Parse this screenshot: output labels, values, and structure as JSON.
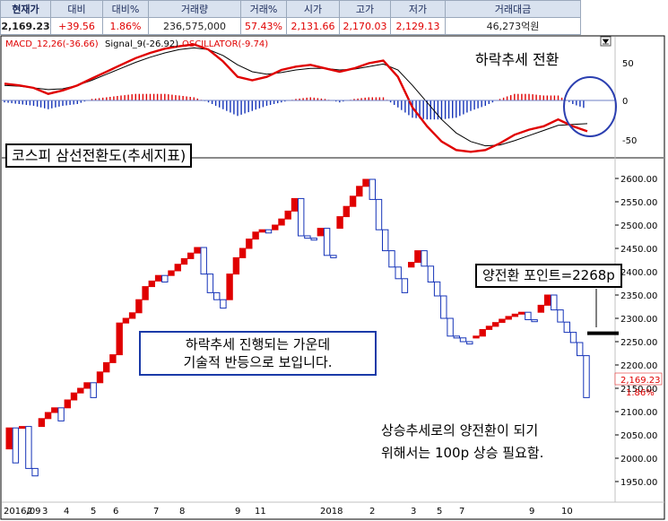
{
  "quote_header": {
    "labels": [
      "현재가",
      "대비",
      "대비%",
      "거래량",
      "거래%",
      "시가",
      "고가",
      "저가",
      "거래대금"
    ],
    "values": [
      "2,169.23",
      "+39.56",
      "1.86%",
      "236,575,000",
      "57.43%",
      "2,131.66",
      "2,170.03",
      "2,129.13",
      "46,273억원"
    ]
  },
  "colors": {
    "up": "#e00000",
    "down": "#1433b8",
    "signal": "#000000",
    "accent_circle": "#2b3fb0"
  },
  "icons": {
    "collapse": "collapse-toggle-icon"
  },
  "macd_panel": {
    "legend": {
      "macd": "MACD_12,26(-36.66)",
      "signal": "Signal_9(-26.92)",
      "oscillator": "OSCILLATOR(-9.74)"
    },
    "y_ticks": [
      "50",
      "0",
      "-50"
    ],
    "annotation": "하락추세 전환"
  },
  "price_panel": {
    "title": "코스피 삼선전환도(추세지표)",
    "y_ticks": [
      "2600.00",
      "2550.00",
      "2500.00",
      "2450.00",
      "2400.00",
      "2350.00",
      "2300.00",
      "2250.00",
      "2200.00",
      "2150.00",
      "2100.00",
      "2050.00",
      "2000.00",
      "1950.00"
    ],
    "current_price": "2,169.23",
    "current_change": "1.86%",
    "x_labels": [
      "2016/09",
      "2",
      "3",
      "4",
      "5",
      "6",
      "7",
      "8",
      "9",
      "11",
      "2018",
      "2",
      "3",
      "5",
      "7",
      "9",
      "10"
    ],
    "annotation_reversal": "양전환 포인트=2268p",
    "annotation_middle_line1": "하락추세 진행되는 가운데",
    "annotation_middle_line2": "기술적 반등으로 보입니다.",
    "annotation_bottom_line1": "상승추세로의 양전환이 되기",
    "annotation_bottom_line2": "위해서는 100p 상승 필요함."
  },
  "chart_data": {
    "type": "three-line-break",
    "reversal_level": 2268,
    "ylim": [
      1930,
      2620
    ],
    "bricks": [
      {
        "dir": "up",
        "open": 2020,
        "close": 2065
      },
      {
        "dir": "down",
        "open": 2065,
        "close": 1990
      },
      {
        "dir": "up",
        "open": 2065,
        "close": 2068
      },
      {
        "dir": "down",
        "open": 2068,
        "close": 1978
      },
      {
        "dir": "down",
        "open": 1978,
        "close": 1962
      },
      {
        "dir": "up",
        "open": 2068,
        "close": 2085
      },
      {
        "dir": "up",
        "open": 2085,
        "close": 2098
      },
      {
        "dir": "up",
        "open": 2098,
        "close": 2108
      },
      {
        "dir": "down",
        "open": 2108,
        "close": 2080
      },
      {
        "dir": "up",
        "open": 2108,
        "close": 2125
      },
      {
        "dir": "up",
        "open": 2125,
        "close": 2140
      },
      {
        "dir": "up",
        "open": 2140,
        "close": 2150
      },
      {
        "dir": "up",
        "open": 2150,
        "close": 2162
      },
      {
        "dir": "down",
        "open": 2162,
        "close": 2130
      },
      {
        "dir": "up",
        "open": 2162,
        "close": 2185
      },
      {
        "dir": "up",
        "open": 2185,
        "close": 2205
      },
      {
        "dir": "up",
        "open": 2205,
        "close": 2222
      },
      {
        "dir": "up",
        "open": 2222,
        "close": 2290
      },
      {
        "dir": "up",
        "open": 2290,
        "close": 2300
      },
      {
        "dir": "up",
        "open": 2300,
        "close": 2312
      },
      {
        "dir": "up",
        "open": 2312,
        "close": 2340
      },
      {
        "dir": "up",
        "open": 2340,
        "close": 2368
      },
      {
        "dir": "up",
        "open": 2368,
        "close": 2380
      },
      {
        "dir": "up",
        "open": 2380,
        "close": 2392
      },
      {
        "dir": "down",
        "open": 2392,
        "close": 2378
      },
      {
        "dir": "up",
        "open": 2392,
        "close": 2402
      },
      {
        "dir": "up",
        "open": 2402,
        "close": 2416
      },
      {
        "dir": "up",
        "open": 2416,
        "close": 2428
      },
      {
        "dir": "up",
        "open": 2428,
        "close": 2440
      },
      {
        "dir": "up",
        "open": 2440,
        "close": 2452
      },
      {
        "dir": "down",
        "open": 2452,
        "close": 2395
      },
      {
        "dir": "down",
        "open": 2395,
        "close": 2355
      },
      {
        "dir": "down",
        "open": 2355,
        "close": 2340
      },
      {
        "dir": "down",
        "open": 2340,
        "close": 2322
      },
      {
        "dir": "up",
        "open": 2340,
        "close": 2395
      },
      {
        "dir": "up",
        "open": 2395,
        "close": 2430
      },
      {
        "dir": "up",
        "open": 2430,
        "close": 2450
      },
      {
        "dir": "up",
        "open": 2450,
        "close": 2470
      },
      {
        "dir": "up",
        "open": 2470,
        "close": 2485
      },
      {
        "dir": "up",
        "open": 2485,
        "close": 2490
      },
      {
        "dir": "down",
        "open": 2490,
        "close": 2483
      },
      {
        "dir": "up",
        "open": 2490,
        "close": 2500
      },
      {
        "dir": "up",
        "open": 2500,
        "close": 2513
      },
      {
        "dir": "up",
        "open": 2513,
        "close": 2530
      },
      {
        "dir": "up",
        "open": 2530,
        "close": 2557
      },
      {
        "dir": "down",
        "open": 2557,
        "close": 2477
      },
      {
        "dir": "down",
        "open": 2477,
        "close": 2472
      },
      {
        "dir": "down",
        "open": 2472,
        "close": 2468
      },
      {
        "dir": "up",
        "open": 2477,
        "close": 2493
      },
      {
        "dir": "down",
        "open": 2493,
        "close": 2435
      },
      {
        "dir": "down",
        "open": 2435,
        "close": 2430
      },
      {
        "dir": "up",
        "open": 2493,
        "close": 2518
      },
      {
        "dir": "up",
        "open": 2518,
        "close": 2540
      },
      {
        "dir": "up",
        "open": 2540,
        "close": 2562
      },
      {
        "dir": "up",
        "open": 2562,
        "close": 2583
      },
      {
        "dir": "up",
        "open": 2583,
        "close": 2598
      },
      {
        "dir": "down",
        "open": 2598,
        "close": 2555
      },
      {
        "dir": "down",
        "open": 2555,
        "close": 2490
      },
      {
        "dir": "down",
        "open": 2490,
        "close": 2445
      },
      {
        "dir": "down",
        "open": 2445,
        "close": 2410
      },
      {
        "dir": "down",
        "open": 2410,
        "close": 2385
      },
      {
        "dir": "down",
        "open": 2385,
        "close": 2355
      },
      {
        "dir": "up",
        "open": 2410,
        "close": 2420
      },
      {
        "dir": "up",
        "open": 2420,
        "close": 2445
      },
      {
        "dir": "down",
        "open": 2445,
        "close": 2412
      },
      {
        "dir": "down",
        "open": 2412,
        "close": 2378
      },
      {
        "dir": "down",
        "open": 2378,
        "close": 2348
      },
      {
        "dir": "down",
        "open": 2348,
        "close": 2300
      },
      {
        "dir": "down",
        "open": 2300,
        "close": 2262
      },
      {
        "dir": "down",
        "open": 2262,
        "close": 2258
      },
      {
        "dir": "down",
        "open": 2258,
        "close": 2250
      },
      {
        "dir": "down",
        "open": 2250,
        "close": 2245
      },
      {
        "dir": "up",
        "open": 2258,
        "close": 2262
      },
      {
        "dir": "up",
        "open": 2262,
        "close": 2276
      },
      {
        "dir": "up",
        "open": 2276,
        "close": 2283
      },
      {
        "dir": "up",
        "open": 2283,
        "close": 2291
      },
      {
        "dir": "up",
        "open": 2291,
        "close": 2298
      },
      {
        "dir": "up",
        "open": 2298,
        "close": 2304
      },
      {
        "dir": "up",
        "open": 2304,
        "close": 2309
      },
      {
        "dir": "up",
        "open": 2309,
        "close": 2313
      },
      {
        "dir": "down",
        "open": 2313,
        "close": 2297
      },
      {
        "dir": "down",
        "open": 2297,
        "close": 2293
      },
      {
        "dir": "up",
        "open": 2313,
        "close": 2328
      },
      {
        "dir": "up",
        "open": 2328,
        "close": 2350
      },
      {
        "dir": "down",
        "open": 2350,
        "close": 2318
      },
      {
        "dir": "down",
        "open": 2318,
        "close": 2292
      },
      {
        "dir": "down",
        "open": 2292,
        "close": 2270
      },
      {
        "dir": "down",
        "open": 2270,
        "close": 2248
      },
      {
        "dir": "down",
        "open": 2248,
        "close": 2220
      },
      {
        "dir": "down",
        "open": 2220,
        "close": 2130
      }
    ],
    "macd": {
      "zero": 0,
      "ylim": [
        -65,
        75
      ],
      "macd_line": [
        20,
        18,
        15,
        8,
        12,
        18,
        26,
        34,
        42,
        50,
        56,
        61,
        64,
        66,
        60,
        46,
        28,
        24,
        28,
        36,
        40,
        42,
        38,
        34,
        38,
        44,
        47,
        28,
        -8,
        -30,
        -48,
        -58,
        -60,
        -58,
        -50,
        -40,
        -34,
        -30,
        -22,
        -30,
        -36
      ],
      "signal_line": [
        18,
        17,
        15,
        13,
        14,
        18,
        24,
        31,
        38,
        45,
        51,
        56,
        60,
        62,
        60,
        53,
        42,
        34,
        31,
        33,
        36,
        38,
        38,
        36,
        37,
        40,
        43,
        36,
        18,
        -2,
        -22,
        -38,
        -48,
        -53,
        -52,
        -47,
        -41,
        -35,
        -29,
        -28,
        -27
      ],
      "osc_bars": [
        -2,
        -4,
        -6,
        -10,
        -6,
        -4,
        2,
        4,
        6,
        8,
        8,
        8,
        6,
        4,
        -2,
        -10,
        -18,
        -12,
        -6,
        -2,
        2,
        4,
        2,
        -2,
        2,
        4,
        4,
        -8,
        -20,
        -22,
        -22,
        -20,
        -12,
        -6,
        2,
        8,
        8,
        6,
        6,
        -4,
        -10
      ]
    }
  }
}
